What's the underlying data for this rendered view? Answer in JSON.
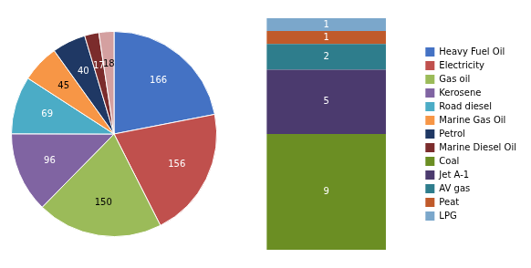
{
  "chart_data": [
    {
      "type": "pie",
      "categories": [
        "Heavy Fuel Oil",
        "Electricity",
        "Gas oil",
        "Kerosene",
        "Road diesel",
        "Marine Gas Oil",
        "Petrol",
        "Marine Diesel Oil",
        null
      ],
      "values": [
        166,
        156,
        150,
        96,
        69,
        45,
        40,
        17,
        18
      ],
      "colors": [
        "#4472C4",
        "#C0504D",
        "#9BBB59",
        "#8064A2",
        "#4BACC6",
        "#F79646",
        "#1F3864",
        "#7B2C2C",
        "#D4A0A0"
      ],
      "data_labels": true
    },
    {
      "type": "bar",
      "stacked": true,
      "categories": [
        null
      ],
      "series": [
        {
          "name": "Coal",
          "color": "#6B8E23",
          "values": [
            9
          ]
        },
        {
          "name": "Jet A-1",
          "color": "#4B3A6E",
          "values": [
            5
          ]
        },
        {
          "name": "AV gas",
          "color": "#2E7D8C",
          "values": [
            2
          ]
        },
        {
          "name": "Peat",
          "color": "#C05A2A",
          "values": [
            1
          ]
        },
        {
          "name": "LPG",
          "color": "#7BA7CB",
          "values": [
            1
          ]
        }
      ],
      "ylim": [
        0,
        18
      ],
      "data_labels": true,
      "tick_labels": false,
      "legend": "right"
    }
  ]
}
